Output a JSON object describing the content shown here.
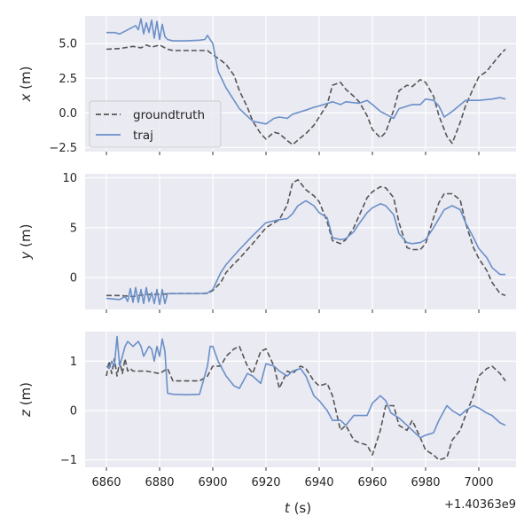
{
  "colors": {
    "panel_bg": "#EAEAF2",
    "grid": "#FFFFFF",
    "groundtruth": "#555555",
    "traj": "#6A8FC8",
    "text": "#262626"
  },
  "chart_data": [
    {
      "type": "line",
      "ylabel": "x (m)",
      "ylabel_var": "x",
      "ylabel_unit": " (m)",
      "ylim": [
        -2.8,
        7.0
      ],
      "yticks": [
        -2.5,
        0.0,
        2.5,
        5.0
      ],
      "ytick_labels": [
        "−2.5",
        "0.0",
        "2.5",
        "5.0"
      ],
      "legend": {
        "position": "center-left",
        "entries": [
          "groundtruth",
          "traj"
        ]
      },
      "series": [
        {
          "name": "groundtruth",
          "style": "dashed",
          "x": [
            6860,
            6865,
            6870,
            6873,
            6875,
            6877,
            6880,
            6883,
            6885,
            6890,
            6895,
            6898,
            6900,
            6903,
            6905,
            6908,
            6910,
            6913,
            6915,
            6918,
            6920,
            6923,
            6925,
            6928,
            6930,
            6933,
            6935,
            6938,
            6940,
            6943,
            6945,
            6948,
            6950,
            6953,
            6955,
            6958,
            6960,
            6963,
            6965,
            6968,
            6970,
            6973,
            6975,
            6978,
            6980,
            6983,
            6985,
            6988,
            6990,
            6993,
            6995,
            6998,
            7000,
            7003,
            7005,
            7008,
            7010
          ],
          "values": [
            4.6,
            4.65,
            4.8,
            4.7,
            4.9,
            4.75,
            4.9,
            4.6,
            4.5,
            4.5,
            4.5,
            4.5,
            4.2,
            3.8,
            3.5,
            2.7,
            1.6,
            0.4,
            -0.6,
            -1.5,
            -1.9,
            -1.4,
            -1.5,
            -2.0,
            -2.3,
            -1.8,
            -1.5,
            -0.9,
            -0.3,
            0.6,
            2.0,
            2.2,
            1.7,
            1.2,
            0.8,
            -0.2,
            -1.2,
            -1.8,
            -1.4,
            0.2,
            1.6,
            2.0,
            1.9,
            2.4,
            2.2,
            1.2,
            -0.2,
            -1.7,
            -2.2,
            -0.7,
            0.5,
            1.8,
            2.6,
            3.0,
            3.5,
            4.2,
            4.6
          ]
        },
        {
          "name": "traj",
          "style": "solid",
          "x": [
            6860,
            6863,
            6865,
            6867,
            6869,
            6871,
            6872,
            6873,
            6874,
            6875,
            6876,
            6877,
            6878,
            6879,
            6880,
            6881,
            6882,
            6883,
            6884,
            6885,
            6890,
            6895,
            6897,
            6898,
            6900,
            6902,
            6905,
            6910,
            6915,
            6920,
            6923,
            6925,
            6928,
            6930,
            6935,
            6938,
            6940,
            6945,
            6948,
            6950,
            6955,
            6958,
            6960,
            6963,
            6965,
            6968,
            6970,
            6975,
            6978,
            6980,
            6983,
            6985,
            6987,
            6990,
            6995,
            7000,
            7005,
            7008,
            7010
          ],
          "values": [
            5.8,
            5.8,
            5.7,
            5.9,
            6.1,
            6.3,
            6.0,
            6.8,
            5.7,
            6.5,
            5.8,
            6.7,
            5.4,
            6.6,
            5.3,
            6.4,
            5.5,
            5.3,
            5.25,
            5.2,
            5.2,
            5.25,
            5.3,
            5.6,
            5.0,
            3.0,
            1.8,
            0.3,
            -0.6,
            -0.8,
            -0.4,
            -0.3,
            -0.4,
            -0.1,
            0.2,
            0.4,
            0.5,
            0.8,
            0.6,
            0.8,
            0.7,
            0.9,
            0.6,
            0.1,
            -0.1,
            -0.4,
            0.3,
            0.6,
            0.6,
            1.0,
            0.9,
            0.5,
            -0.3,
            0.1,
            0.9,
            0.9,
            1.0,
            1.1,
            1.0
          ]
        }
      ]
    },
    {
      "type": "line",
      "ylabel": "y (m)",
      "ylabel_var": "y",
      "ylabel_unit": " (m)",
      "ylim": [
        -3.2,
        10.4
      ],
      "yticks": [
        0,
        5,
        10
      ],
      "ytick_labels": [
        "0",
        "5",
        "10"
      ],
      "series": [
        {
          "name": "groundtruth",
          "style": "dashed",
          "x": [
            6860,
            6865,
            6870,
            6875,
            6880,
            6885,
            6890,
            6895,
            6898,
            6900,
            6903,
            6905,
            6908,
            6910,
            6915,
            6920,
            6925,
            6928,
            6930,
            6932,
            6935,
            6938,
            6940,
            6943,
            6945,
            6948,
            6950,
            6953,
            6955,
            6958,
            6960,
            6963,
            6965,
            6968,
            6970,
            6973,
            6975,
            6978,
            6980,
            6983,
            6985,
            6987,
            6990,
            6993,
            6995,
            6998,
            7000,
            7003,
            7005,
            7008,
            7010
          ],
          "values": [
            -1.8,
            -1.8,
            -1.9,
            -1.7,
            -1.7,
            -1.6,
            -1.6,
            -1.6,
            -1.6,
            -1.3,
            -0.5,
            0.5,
            1.4,
            1.9,
            3.4,
            5.0,
            5.8,
            7.3,
            9.5,
            9.8,
            8.8,
            8.2,
            7.6,
            5.6,
            3.7,
            3.4,
            3.8,
            5.0,
            6.2,
            8.0,
            8.6,
            9.1,
            9.0,
            8.0,
            5.5,
            3.0,
            2.8,
            2.8,
            3.4,
            6.0,
            7.5,
            8.4,
            8.4,
            7.8,
            5.5,
            3.0,
            1.9,
            0.7,
            -0.5,
            -1.6,
            -1.8
          ]
        },
        {
          "name": "traj",
          "style": "solid",
          "x": [
            6860,
            6865,
            6867,
            6868,
            6869,
            6870,
            6871,
            6872,
            6873,
            6874,
            6875,
            6876,
            6877,
            6878,
            6879,
            6880,
            6881,
            6882,
            6883,
            6885,
            6890,
            6895,
            6898,
            6900,
            6903,
            6905,
            6910,
            6915,
            6920,
            6925,
            6928,
            6930,
            6932,
            6935,
            6938,
            6940,
            6943,
            6945,
            6948,
            6950,
            6953,
            6955,
            6958,
            6960,
            6963,
            6965,
            6968,
            6970,
            6973,
            6975,
            6978,
            6980,
            6983,
            6985,
            6987,
            6990,
            6993,
            6995,
            6998,
            7000,
            7003,
            7005,
            7008,
            7010
          ],
          "values": [
            -2.1,
            -2.2,
            -1.9,
            -2.4,
            -1.1,
            -2.5,
            -1.0,
            -2.5,
            -1.2,
            -2.6,
            -1.0,
            -2.4,
            -1.5,
            -2.6,
            -1.2,
            -2.7,
            -1.2,
            -2.6,
            -1.6,
            -1.6,
            -1.6,
            -1.6,
            -1.55,
            -1.2,
            0.5,
            1.3,
            2.8,
            4.2,
            5.5,
            5.8,
            5.9,
            6.4,
            7.2,
            7.7,
            7.2,
            6.5,
            6.0,
            4.0,
            3.8,
            3.9,
            4.6,
            5.4,
            6.5,
            7.0,
            7.4,
            7.2,
            6.3,
            4.4,
            3.5,
            3.4,
            3.5,
            3.8,
            5.0,
            5.9,
            6.8,
            7.2,
            6.8,
            5.5,
            4.0,
            2.9,
            2.0,
            1.0,
            0.3,
            0.3
          ]
        }
      ]
    },
    {
      "type": "line",
      "xlabel": "t (s)",
      "xlabel_var": "t",
      "xlabel_unit": " (s)",
      "offset_text": "+1.40363e9",
      "xlim": [
        6852,
        7014
      ],
      "xticks": [
        6860,
        6880,
        6900,
        6920,
        6940,
        6960,
        6980,
        7000
      ],
      "xtick_labels": [
        "6860",
        "6880",
        "6900",
        "6920",
        "6940",
        "6960",
        "6980",
        "7000"
      ],
      "ylabel": "z (m)",
      "ylabel_var": "z",
      "ylabel_unit": " (m)",
      "ylim": [
        -1.15,
        1.6
      ],
      "yticks": [
        -1,
        0,
        1
      ],
      "ytick_labels": [
        "−1",
        "0",
        "1"
      ],
      "series": [
        {
          "name": "groundtruth",
          "style": "dashed",
          "x": [
            6860,
            6861,
            6862,
            6863,
            6864,
            6865,
            6866,
            6867,
            6868,
            6869,
            6870,
            6875,
            6880,
            6883,
            6885,
            6890,
            6895,
            6898,
            6900,
            6903,
            6905,
            6908,
            6910,
            6913,
            6915,
            6918,
            6920,
            6923,
            6925,
            6928,
            6930,
            6933,
            6935,
            6938,
            6940,
            6943,
            6945,
            6948,
            6950,
            6953,
            6955,
            6958,
            6960,
            6963,
            6965,
            6968,
            6970,
            6973,
            6975,
            6978,
            6980,
            6983,
            6985,
            6988,
            6990,
            6993,
            6995,
            6998,
            7000,
            7003,
            7005,
            7008,
            7010
          ],
          "values": [
            0.7,
            1.0,
            0.75,
            1.05,
            0.7,
            1.0,
            0.75,
            1.05,
            0.8,
            0.85,
            0.8,
            0.8,
            0.75,
            0.85,
            0.6,
            0.6,
            0.6,
            0.7,
            0.9,
            0.9,
            1.1,
            1.25,
            1.3,
            0.9,
            0.75,
            1.2,
            1.25,
            0.9,
            0.45,
            0.8,
            0.75,
            0.9,
            0.85,
            0.6,
            0.5,
            0.55,
            0.3,
            -0.4,
            -0.3,
            -0.6,
            -0.65,
            -0.7,
            -0.9,
            -0.4,
            0.1,
            0.1,
            -0.3,
            -0.4,
            -0.2,
            -0.55,
            -0.8,
            -0.9,
            -1.0,
            -0.95,
            -0.6,
            -0.4,
            -0.1,
            0.3,
            0.7,
            0.85,
            0.9,
            0.75,
            0.6
          ]
        },
        {
          "name": "traj",
          "style": "solid",
          "x": [
            6860,
            6861,
            6862,
            6863,
            6864,
            6865,
            6866,
            6867,
            6868,
            6870,
            6872,
            6873,
            6874,
            6875,
            6876,
            6877,
            6878,
            6879,
            6880,
            6881,
            6882,
            6883,
            6885,
            6890,
            6895,
            6898,
            6899,
            6900,
            6902,
            6905,
            6908,
            6910,
            6913,
            6915,
            6918,
            6920,
            6923,
            6925,
            6928,
            6930,
            6933,
            6935,
            6938,
            6940,
            6943,
            6945,
            6948,
            6950,
            6953,
            6955,
            6958,
            6960,
            6963,
            6965,
            6967,
            6970,
            6973,
            6975,
            6978,
            6980,
            6983,
            6985,
            6988,
            6990,
            6993,
            6995,
            6998,
            7000,
            7003,
            7005,
            7008,
            7010
          ],
          "values": [
            0.9,
            0.85,
            1.0,
            0.9,
            1.5,
            0.9,
            1.1,
            1.3,
            1.4,
            1.3,
            1.4,
            1.3,
            1.1,
            1.2,
            1.3,
            1.25,
            1.0,
            1.3,
            1.1,
            1.45,
            1.2,
            0.35,
            0.33,
            0.32,
            0.33,
            0.9,
            1.3,
            1.3,
            1.0,
            0.7,
            0.5,
            0.45,
            0.75,
            0.7,
            0.55,
            0.95,
            0.9,
            0.8,
            0.7,
            0.8,
            0.85,
            0.7,
            0.3,
            0.2,
            0.0,
            -0.2,
            -0.2,
            -0.3,
            -0.1,
            -0.1,
            -0.1,
            0.15,
            0.3,
            0.2,
            -0.05,
            -0.15,
            -0.3,
            -0.4,
            -0.55,
            -0.5,
            -0.45,
            -0.2,
            0.1,
            0.0,
            -0.1,
            0.0,
            0.1,
            0.05,
            -0.05,
            -0.1,
            -0.25,
            -0.3
          ]
        }
      ]
    }
  ]
}
